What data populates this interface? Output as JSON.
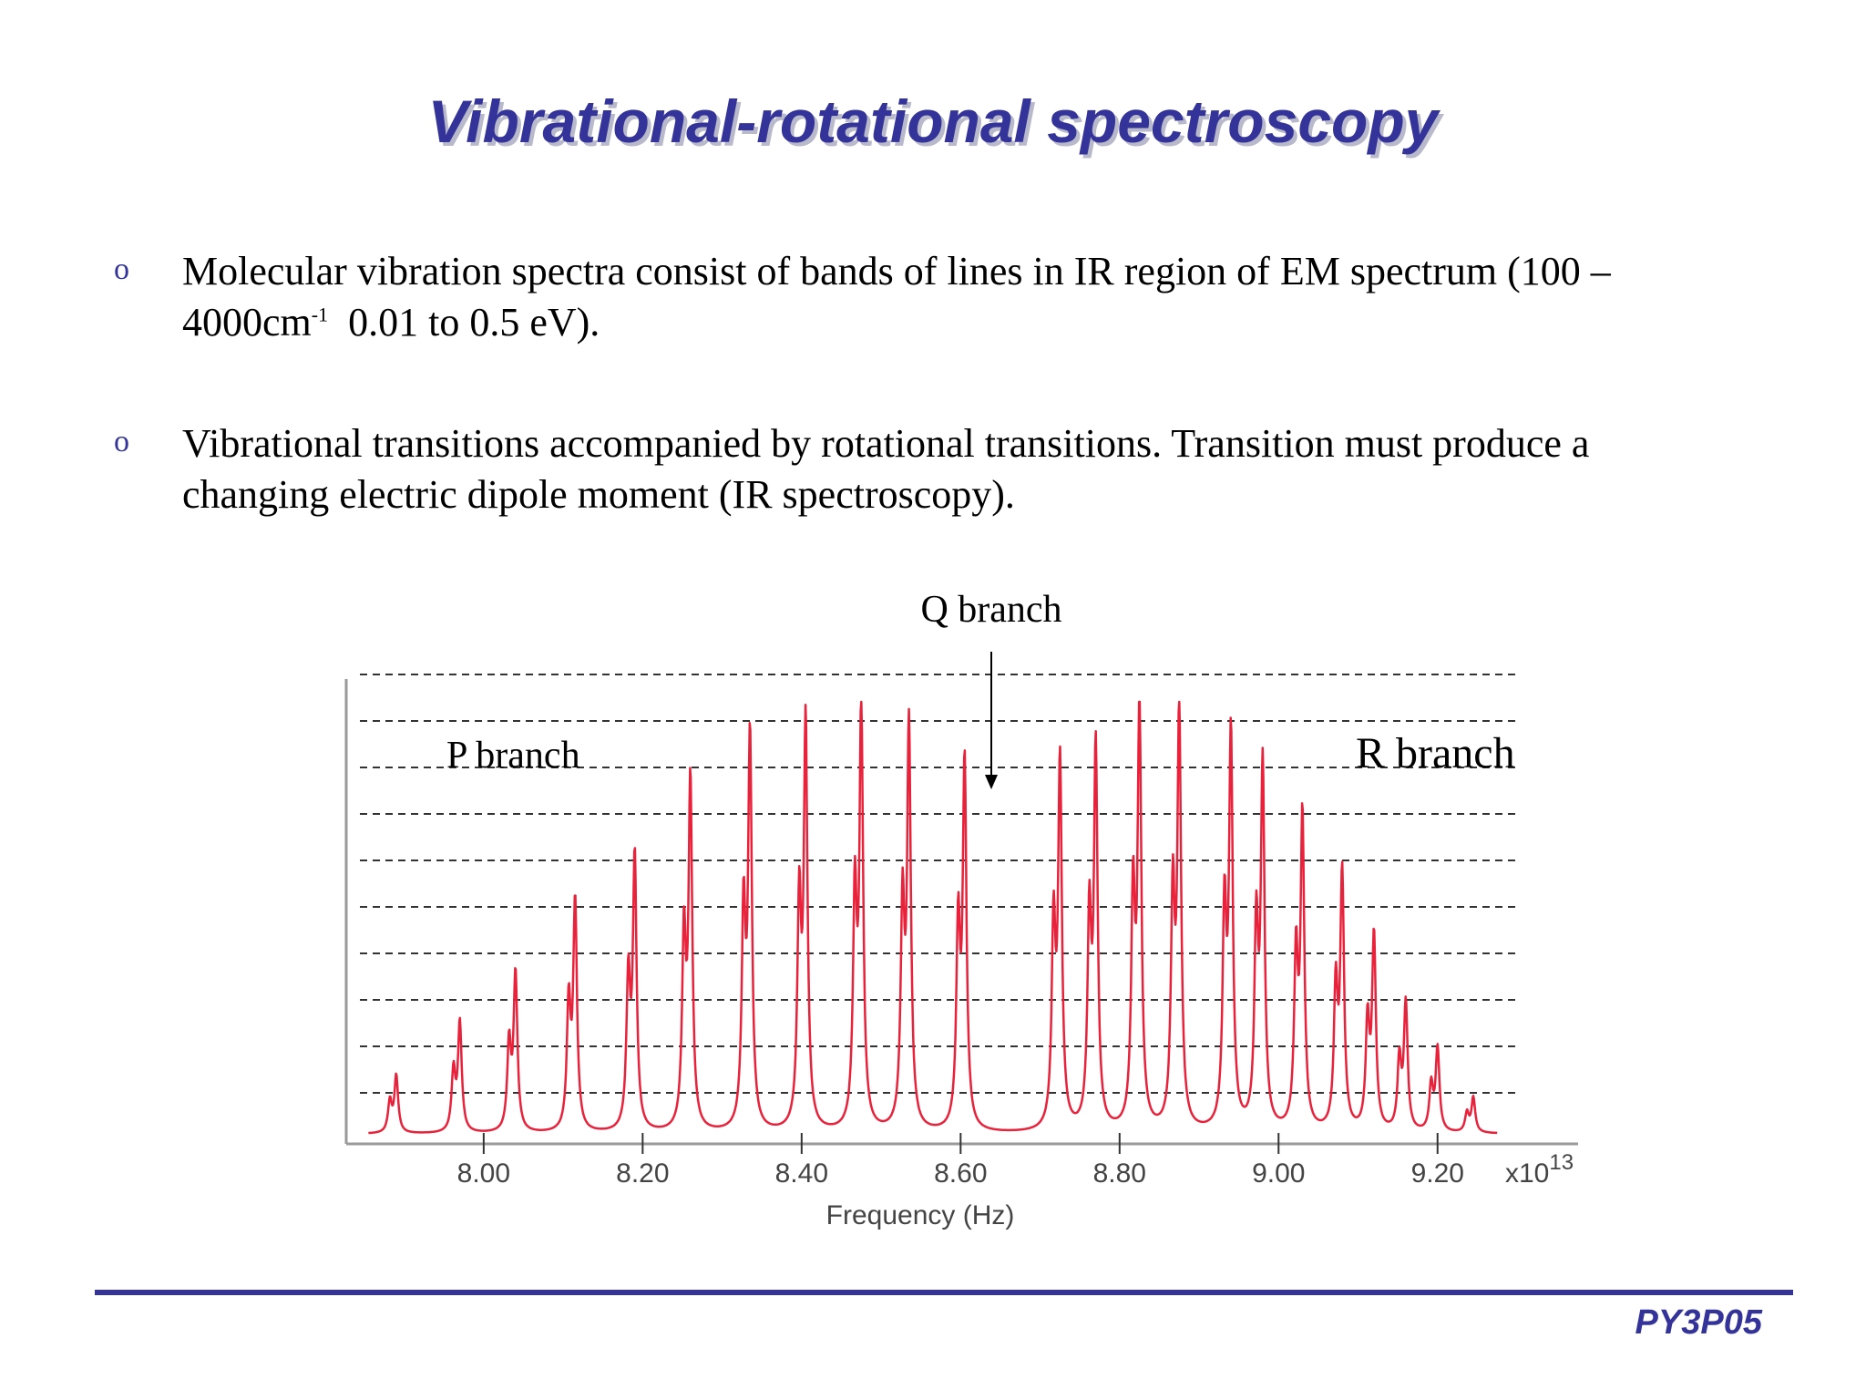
{
  "slide": {
    "title": "Vibrational-rotational spectroscopy",
    "bullet_marker": "o",
    "bullets": [
      {
        "text_line1": "Molecular vibration spectra consist of bands of lines in IR region of EM spectrum (100 –",
        "text_line2_pre": "4000cm",
        "text_line2_sup": "-1",
        "text_line2_post": "  0.01 to 0.5 eV)."
      },
      {
        "text_line1": "Vibrational transitions accompanied by rotational transitions. Transition must produce a",
        "text_line2": "changing electric dipole moment (IR spectroscopy)."
      }
    ],
    "footer_code": "PY3P05"
  },
  "colors": {
    "title": "#33339a",
    "spectrum": "#e8223a",
    "footer_line": "#33339a",
    "grid": "#333333"
  },
  "chart_data": {
    "type": "line",
    "xlabel": "Frequency (Hz)",
    "x_multiplier": "x10",
    "x_multiplier_exp": "13",
    "x_ticks": [
      8.0,
      8.2,
      8.4,
      8.6,
      8.8,
      9.0,
      9.2
    ],
    "x_tick_labels": [
      "8.00",
      "8.20",
      "8.40",
      "8.60",
      "8.80",
      "9.00",
      "9.20"
    ],
    "xlim": [
      7.85,
      9.3
    ],
    "ylim": [
      0,
      1
    ],
    "grid": "horizontal dashed",
    "annotations": {
      "p_branch": "P branch",
      "q_branch": "Q branch",
      "r_branch": "R branch"
    },
    "series": [
      {
        "peaks": [
          {
            "x": 7.89,
            "y": 0.13
          },
          {
            "x": 7.97,
            "y": 0.25
          },
          {
            "x": 8.04,
            "y": 0.36
          },
          {
            "x": 8.115,
            "y": 0.52
          },
          {
            "x": 8.19,
            "y": 0.62
          },
          {
            "x": 8.26,
            "y": 0.79
          },
          {
            "x": 8.335,
            "y": 0.89
          },
          {
            "x": 8.405,
            "y": 0.92
          },
          {
            "x": 8.475,
            "y": 0.95
          },
          {
            "x": 8.535,
            "y": 0.91
          },
          {
            "x": 8.605,
            "y": 0.83
          },
          {
            "x": 8.725,
            "y": 0.83
          },
          {
            "x": 8.77,
            "y": 0.86
          },
          {
            "x": 8.825,
            "y": 0.95
          },
          {
            "x": 8.875,
            "y": 0.95
          },
          {
            "x": 8.94,
            "y": 0.89
          },
          {
            "x": 8.98,
            "y": 0.82
          },
          {
            "x": 9.03,
            "y": 0.71
          },
          {
            "x": 9.08,
            "y": 0.58
          },
          {
            "x": 9.12,
            "y": 0.44
          },
          {
            "x": 9.16,
            "y": 0.29
          },
          {
            "x": 9.2,
            "y": 0.19
          },
          {
            "x": 9.245,
            "y": 0.08
          }
        ]
      }
    ]
  }
}
